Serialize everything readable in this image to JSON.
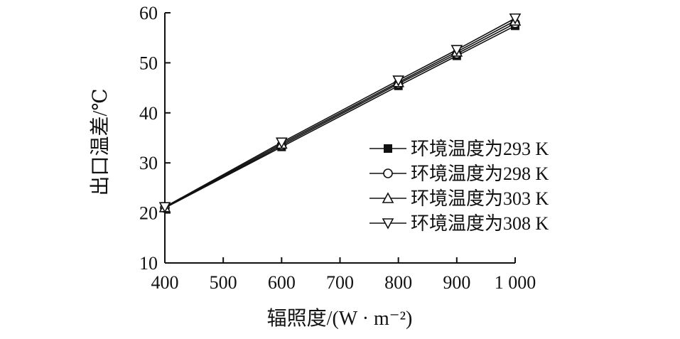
{
  "chart_data": {
    "type": "line",
    "xlabel": "辐照度/(W · m⁻²)",
    "ylabel": "出口温差/℃",
    "x": [
      400,
      600,
      800,
      900,
      1000
    ],
    "xticks": [
      400,
      500,
      600,
      700,
      800,
      900,
      1000
    ],
    "xtick_labels": [
      "400",
      "500",
      "600",
      "700",
      "800",
      "900",
      "1 000"
    ],
    "yticks": [
      10,
      20,
      30,
      40,
      50,
      60
    ],
    "ytick_labels": [
      "10",
      "20",
      "30",
      "40",
      "50",
      "60"
    ],
    "xlim": [
      400,
      1000
    ],
    "ylim": [
      10,
      60
    ],
    "grid": false,
    "legend_position": "center-right",
    "series": [
      {
        "name": "环境温度为293 K",
        "marker": "filled-square",
        "values": [
          21.0,
          33.2,
          45.4,
          51.4,
          57.4
        ]
      },
      {
        "name": "环境温度为298 K",
        "marker": "open-circle",
        "values": [
          21.0,
          33.5,
          45.8,
          51.8,
          57.9
        ]
      },
      {
        "name": "环境温度为303 K",
        "marker": "open-triangle-up",
        "values": [
          21.1,
          33.8,
          46.1,
          52.2,
          58.4
        ]
      },
      {
        "name": "环境温度为308 K",
        "marker": "open-triangle-down",
        "values": [
          21.2,
          34.1,
          46.5,
          52.6,
          58.9
        ]
      }
    ],
    "line_color": "#111111"
  }
}
